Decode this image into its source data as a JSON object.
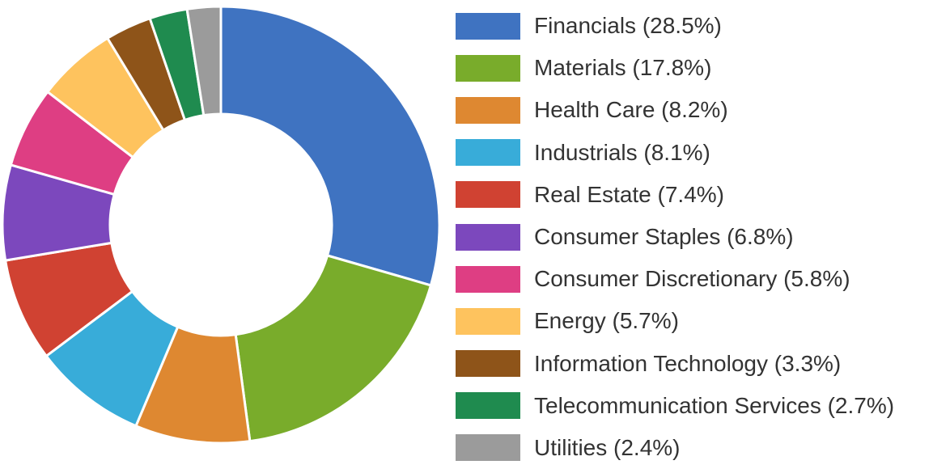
{
  "chart_data": {
    "type": "pie",
    "donut": true,
    "legend_position": "right",
    "start_angle_deg": 0,
    "direction": "clockwise",
    "slices": [
      {
        "label": "Financials (28.5%)",
        "value": 28.5,
        "color": "#3f73c1"
      },
      {
        "label": "Materials (17.8%)",
        "value": 17.8,
        "color": "#79ac2b"
      },
      {
        "label": "Health Care (8.2%)",
        "value": 8.2,
        "color": "#de8831"
      },
      {
        "label": "Industrials (8.1%)",
        "value": 8.1,
        "color": "#38acd9"
      },
      {
        "label": "Real Estate (7.4%)",
        "value": 7.4,
        "color": "#d04232"
      },
      {
        "label": "Consumer Staples (6.8%)",
        "value": 6.8,
        "color": "#7c48bd"
      },
      {
        "label": "Consumer Discretionary (5.8%)",
        "value": 5.8,
        "color": "#de3e83"
      },
      {
        "label": "Energy (5.7%)",
        "value": 5.7,
        "color": "#fec35e"
      },
      {
        "label": "Information Technology (3.3%)",
        "value": 3.3,
        "color": "#8e5419"
      },
      {
        "label": "Telecommunication Services (2.7%)",
        "value": 2.7,
        "color": "#1f8b4f"
      },
      {
        "label": "Utilities (2.4%)",
        "value": 2.4,
        "color": "#9b9b9b"
      }
    ]
  }
}
